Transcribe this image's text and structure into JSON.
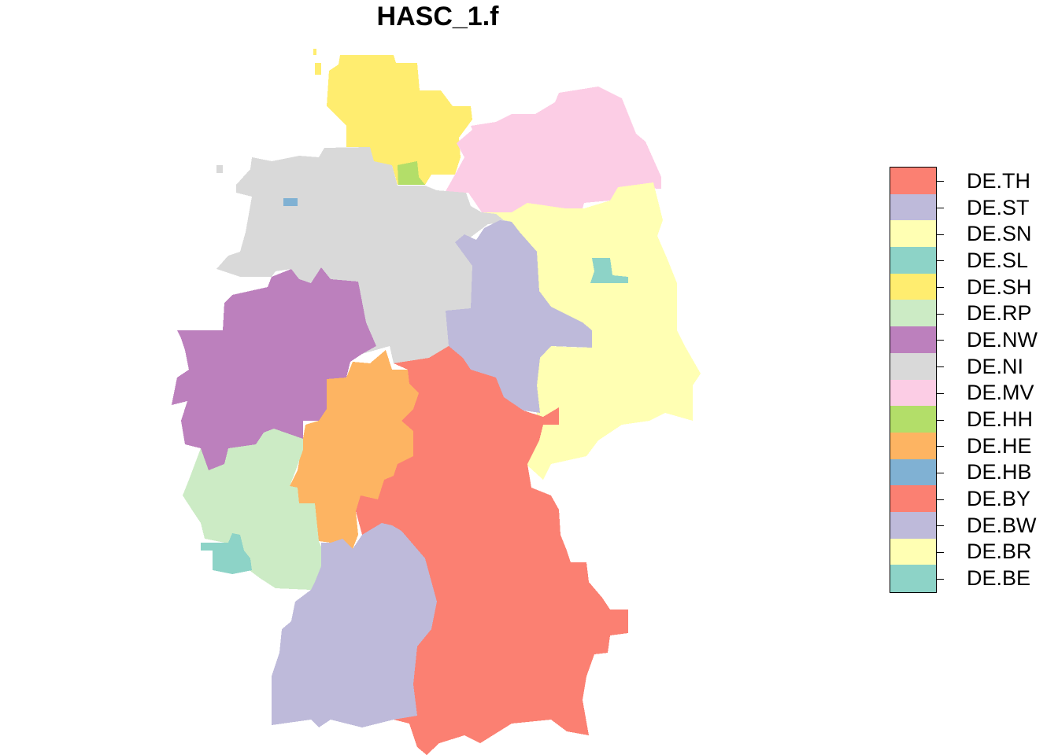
{
  "title": "HASC_1.f",
  "legend": [
    {
      "code": "DE.TH",
      "color": "#fb8072"
    },
    {
      "code": "DE.ST",
      "color": "#bebada"
    },
    {
      "code": "DE.SN",
      "color": "#ffffb3"
    },
    {
      "code": "DE.SL",
      "color": "#8dd3c7"
    },
    {
      "code": "DE.SH",
      "color": "#ffed6f"
    },
    {
      "code": "DE.RP",
      "color": "#ccebc5"
    },
    {
      "code": "DE.NW",
      "color": "#bc80bd"
    },
    {
      "code": "DE.NI",
      "color": "#d9d9d9"
    },
    {
      "code": "DE.MV",
      "color": "#fccde5"
    },
    {
      "code": "DE.HH",
      "color": "#b3de69"
    },
    {
      "code": "DE.HE",
      "color": "#fdb462"
    },
    {
      "code": "DE.HB",
      "color": "#80b1d3"
    },
    {
      "code": "DE.BY",
      "color": "#fb8072"
    },
    {
      "code": "DE.BW",
      "color": "#bebada"
    },
    {
      "code": "DE.BR",
      "color": "#ffffb3"
    },
    {
      "code": "DE.BE",
      "color": "#8dd3c7"
    }
  ],
  "regions": [
    {
      "code": "DE.SH",
      "color": "#ffed6f"
    },
    {
      "code": "DE.HH",
      "color": "#b3de69"
    },
    {
      "code": "DE.MV",
      "color": "#fccde5"
    },
    {
      "code": "DE.NI",
      "color": "#d9d9d9"
    },
    {
      "code": "DE.HB",
      "color": "#80b1d3"
    },
    {
      "code": "DE.BR",
      "color": "#ffffb3"
    },
    {
      "code": "DE.BE",
      "color": "#8dd3c7"
    },
    {
      "code": "DE.ST",
      "color": "#bebada"
    },
    {
      "code": "DE.NW",
      "color": "#bc80bd"
    },
    {
      "code": "DE.HE",
      "color": "#fdb462"
    },
    {
      "code": "DE.TH",
      "color": "#fb8072"
    },
    {
      "code": "DE.RP",
      "color": "#ccebc5"
    },
    {
      "code": "DE.SL",
      "color": "#8dd3c7"
    },
    {
      "code": "DE.BW",
      "color": "#bebada"
    },
    {
      "code": "DE.BY",
      "color": "#fb8072"
    }
  ]
}
